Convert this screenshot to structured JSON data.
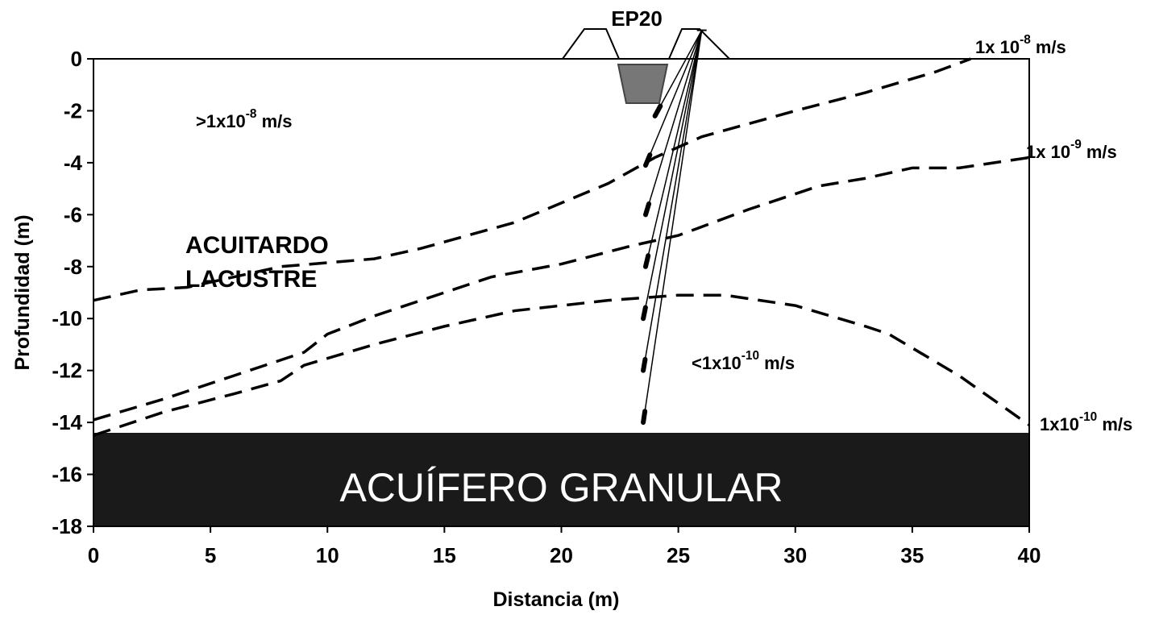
{
  "chart_data": {
    "type": "line",
    "title": "EP20",
    "x_label": "Distancia (m)",
    "y_label": "Profundidad (m)",
    "xlim": [
      0,
      40
    ],
    "xticks": [
      0,
      5,
      10,
      15,
      20,
      25,
      30,
      35,
      40
    ],
    "ylim": [
      -18,
      0
    ],
    "yticks": [
      0,
      -2,
      -4,
      -6,
      -8,
      -10,
      -12,
      -14,
      -16,
      -18
    ],
    "series": [
      {
        "label": {
          "base": "1x 10",
          "exp": "-8",
          "unit": " m/s"
        },
        "color": "#000000",
        "x": [
          0,
          2,
          4,
          8,
          12,
          14,
          18,
          22,
          24,
          26,
          30,
          33,
          36,
          37.5
        ],
        "values": [
          -9.3,
          -8.9,
          -8.8,
          -8.0,
          -7.7,
          -7.3,
          -6.3,
          -4.8,
          -3.8,
          -3.0,
          -2.0,
          -1.3,
          -0.5,
          0
        ]
      },
      {
        "label": {
          "base": "1x 10",
          "exp": "-9",
          "unit": " m/s"
        },
        "color": "#000000",
        "x": [
          0,
          3,
          6,
          9,
          10,
          12,
          15,
          17,
          20,
          23,
          25,
          28,
          31,
          33,
          35,
          37,
          40
        ],
        "values": [
          -13.9,
          -13.1,
          -12.2,
          -11.3,
          -10.6,
          -9.9,
          -9.0,
          -8.4,
          -7.9,
          -7.2,
          -6.8,
          -5.8,
          -4.9,
          -4.6,
          -4.2,
          -4.2,
          -3.8
        ]
      },
      {
        "label": {
          "base": "1x10",
          "exp": "-10",
          "unit": " m/s"
        },
        "color": "#000000",
        "x": [
          0,
          3,
          6,
          8,
          9,
          12,
          15,
          18,
          22,
          25,
          27,
          30,
          33,
          34,
          37,
          40
        ],
        "values": [
          -14.5,
          -13.6,
          -12.9,
          -12.4,
          -11.8,
          -11.0,
          -10.3,
          -9.7,
          -9.3,
          -9.1,
          -9.1,
          -9.5,
          -10.3,
          -10.6,
          -12.2,
          -14.1
        ]
      }
    ],
    "aquifer": {
      "label": "ACUÍFERO GRANULAR",
      "top": -14.4,
      "color": "#1a1a1a"
    },
    "piezometers": {
      "head_x": 26,
      "head_y": 1.1,
      "x": [
        24,
        23.6,
        23.6,
        23.6,
        23.5,
        23.5,
        23.5
      ],
      "y": [
        -2.2,
        -4.1,
        -6.0,
        -8.0,
        -10.0,
        -12.0,
        -14.0
      ]
    },
    "annotations": [
      {
        "base": ">1x10",
        "exp": "-8",
        "unit": "  m/s"
      },
      {
        "base": "<1x10",
        "exp": "-10",
        "unit": " m/s"
      }
    ],
    "zone_label": [
      "ACUITARDO",
      "LACUSTRE"
    ]
  }
}
